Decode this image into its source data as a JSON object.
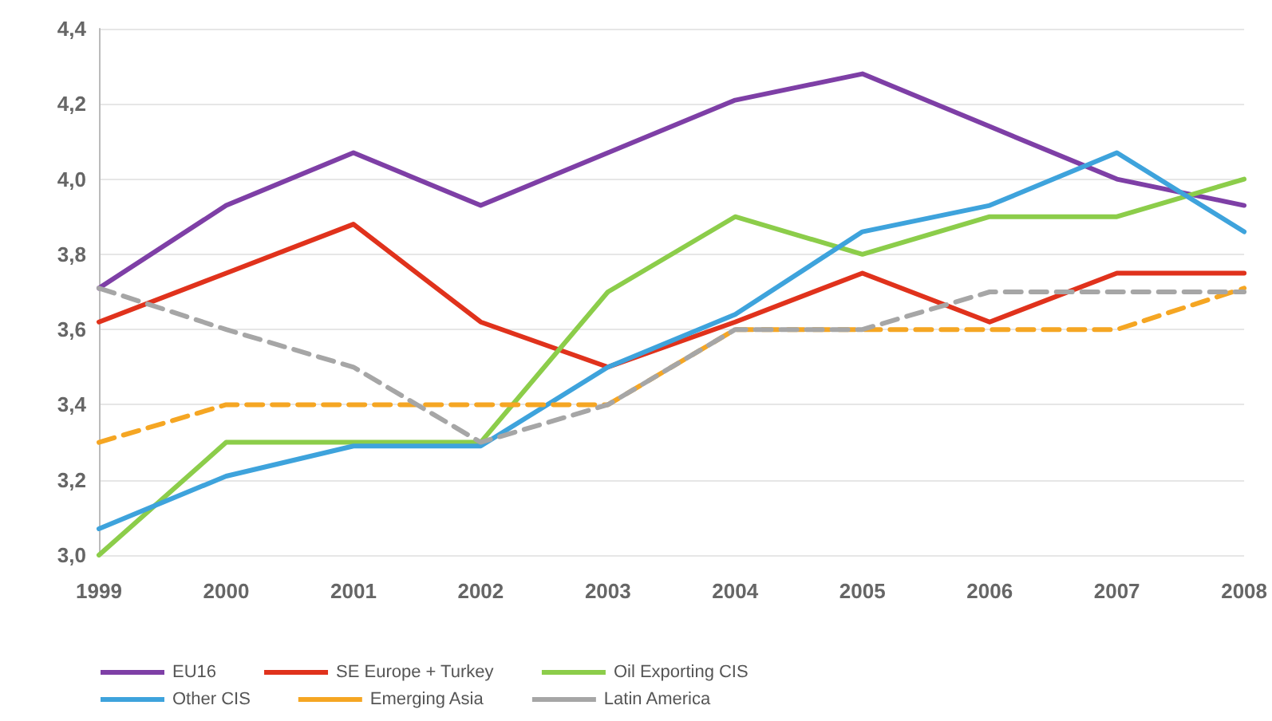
{
  "chart_data": {
    "type": "line",
    "categories": [
      "1999",
      "2000",
      "2001",
      "2002",
      "2003",
      "2004",
      "2005",
      "2006",
      "2007",
      "2008"
    ],
    "ylim": [
      3.0,
      4.4
    ],
    "yticks": [
      {
        "value": 3.0,
        "label": "3,0"
      },
      {
        "value": 3.2,
        "label": "3,2"
      },
      {
        "value": 3.4,
        "label": "3,4"
      },
      {
        "value": 3.6,
        "label": "3,6"
      },
      {
        "value": 3.8,
        "label": "3,8"
      },
      {
        "value": 4.0,
        "label": "4,0"
      },
      {
        "value": 4.2,
        "label": "4,2"
      },
      {
        "value": 4.4,
        "label": "4,4"
      }
    ],
    "grid": "y",
    "legend": "bottom",
    "marker": "none",
    "series": [
      {
        "name": "EU16",
        "color": "#7e3fa6",
        "line_style": "solid",
        "values": [
          3.71,
          3.93,
          4.07,
          3.93,
          4.07,
          4.21,
          4.28,
          4.14,
          4.0,
          3.93
        ]
      },
      {
        "name": "SE Europe + Turkey",
        "color": "#e0321c",
        "line_style": "solid",
        "values": [
          3.62,
          3.75,
          3.88,
          3.62,
          3.5,
          3.62,
          3.75,
          3.62,
          3.75,
          3.75
        ]
      },
      {
        "name": "Oil Exporting CIS",
        "color": "#8ccd4a",
        "line_style": "solid",
        "values": [
          3.0,
          3.3,
          3.3,
          3.3,
          3.7,
          3.9,
          3.8,
          3.9,
          3.9,
          4.0
        ]
      },
      {
        "name": "Other CIS",
        "color": "#3ea3dc",
        "line_style": "solid",
        "values": [
          3.07,
          3.21,
          3.29,
          3.29,
          3.5,
          3.64,
          3.86,
          3.93,
          4.07,
          3.86
        ]
      },
      {
        "name": "Emerging Asia",
        "color": "#f5a623",
        "line_style": "dashed",
        "values": [
          3.3,
          3.4,
          3.4,
          3.4,
          3.4,
          3.6,
          3.6,
          3.6,
          3.6,
          3.71
        ]
      },
      {
        "name": "Latin America",
        "color": "#a6a6a6",
        "line_style": "dashed",
        "values": [
          3.71,
          3.6,
          3.5,
          3.3,
          3.4,
          3.6,
          3.6,
          3.7,
          3.7,
          3.7
        ]
      }
    ]
  }
}
